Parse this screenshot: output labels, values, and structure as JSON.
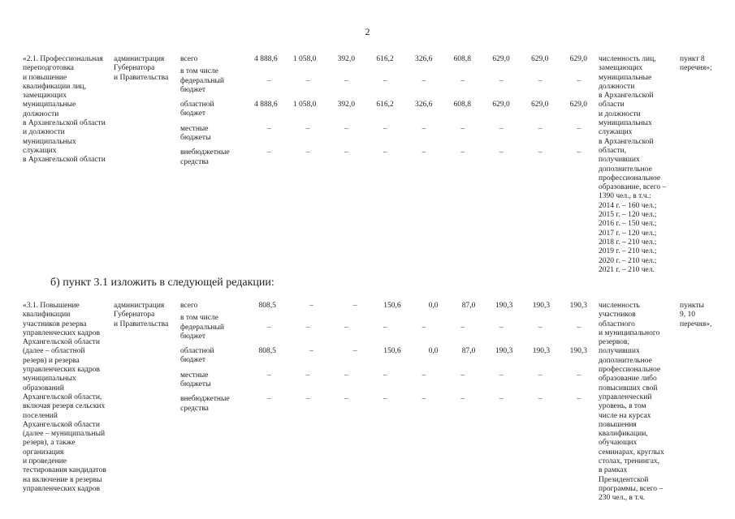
{
  "page_number": "2",
  "amendment_line": "б) пункт 3.1 изложить в следующей редакции:",
  "tables": [
    {
      "description": "«2.1. Профессиональная\nпереподготовка\nи повышение\nквалификации лиц,\nзамещающих\nмуниципальные\nдолжности\nв Архангельской области\nи должности\nмуниципальных\nслужащих\nв Архангельской области",
      "executor": "администрация\nГубернатора\nи Правительства",
      "financing_rows": [
        {
          "label": "всего",
          "values": [
            "4 888,6",
            "1 058,0",
            "392,0",
            "616,2",
            "326,6",
            "608,8",
            "629,0",
            "629,0",
            "629,0"
          ]
        },
        {
          "label": "в том числе",
          "values": []
        },
        {
          "label": "федеральный\nбюджет",
          "values": [
            "–",
            "–",
            "–",
            "–",
            "–",
            "–",
            "–",
            "–",
            "–"
          ]
        },
        {
          "label": "областной\nбюджет",
          "values": [
            "4 888,6",
            "1 058,0",
            "392,0",
            "616,2",
            "326,6",
            "608,8",
            "629,0",
            "629,0",
            "629,0"
          ]
        },
        {
          "label": "местные\nбюджеты",
          "values": [
            "–",
            "–",
            "–",
            "–",
            "–",
            "–",
            "–",
            "–",
            "–"
          ]
        },
        {
          "label": "внебюджетные\nсредства",
          "values": [
            "–",
            "–",
            "–",
            "–",
            "–",
            "–",
            "–",
            "–",
            "–"
          ]
        }
      ],
      "indicator": "численность лиц,\nзамещающих\nмуниципальные\nдолжности\nв Архангельской\nобласти\nи должности\nмуниципальных\nслужащих\nв Архангельской\nобласти,\nполучивших\nдополнительное\nпрофессиональное\nобразование, всего –\n1390 чел., в т.ч.:\n2014 г. – 160 чел.;\n2015 г. – 120 чел.;\n2016 г. – 150 чел.;\n2017 г. – 120 чел.;\n2018 г. – 210 чел.;\n2019 г. – 210 чел.;\n2020 г. – 210 чел.;\n2021 г. – 210 чел.",
      "reference": "пункт 8\nперечня»;"
    },
    {
      "description": "«3.1. Повышение\nквалификации\nучастников резерва\nуправленческих кадров\nАрхангельской области\n(далее – областной\nрезерв) и резерва\nуправленческих кадров\nмуниципальных\nобразований\nАрхангельской области,\nвключая резерв сельских\nпоселений\nАрхангельской области\n(далее – муниципальный\nрезерв), а также\nорганизация\nи проведение\nтестирования кандидатов\nна включение в резервы\nуправленческих кадров",
      "executor": "администрация\nГубернатора\nи Правительства",
      "financing_rows": [
        {
          "label": "всего",
          "values": [
            "808,5",
            "–",
            "–",
            "150,6",
            "0,0",
            "87,0",
            "190,3",
            "190,3",
            "190,3"
          ]
        },
        {
          "label": "в том числе",
          "values": []
        },
        {
          "label": "федеральный\nбюджет",
          "values": [
            "–",
            "–",
            "–",
            "–",
            "–",
            "–",
            "–",
            "–",
            "–"
          ]
        },
        {
          "label": "областной\nбюджет",
          "values": [
            "808,5",
            "–",
            "–",
            "150,6",
            "0,0",
            "87,0",
            "190,3",
            "190,3",
            "190,3"
          ]
        },
        {
          "label": "местные\nбюджеты",
          "values": [
            "–",
            "–",
            "–",
            "–",
            "–",
            "–",
            "–",
            "–",
            "–"
          ]
        },
        {
          "label": "внебюджетные\nсредства",
          "values": [
            "–",
            "–",
            "–",
            "–",
            "–",
            "–",
            "–",
            "–",
            "–"
          ]
        }
      ],
      "indicator": "численность\nучастников\nобластного\nи муниципального\nрезервов,\nполучивших\nдополнительное\nпрофессиональное\nобразование либо\nповысивших свой\nуправленческий\nуровень, в том\nчисле на курсах\nповышения\nквалификации,\nобучающих\nсеминарах, круглых\nстолах, тренингах,\nв рамках\nПрезидентской\nпрограммы, всего –\n230 чел., в т.ч.",
      "reference": "пункты\n9, 10\nперечня»,"
    }
  ]
}
